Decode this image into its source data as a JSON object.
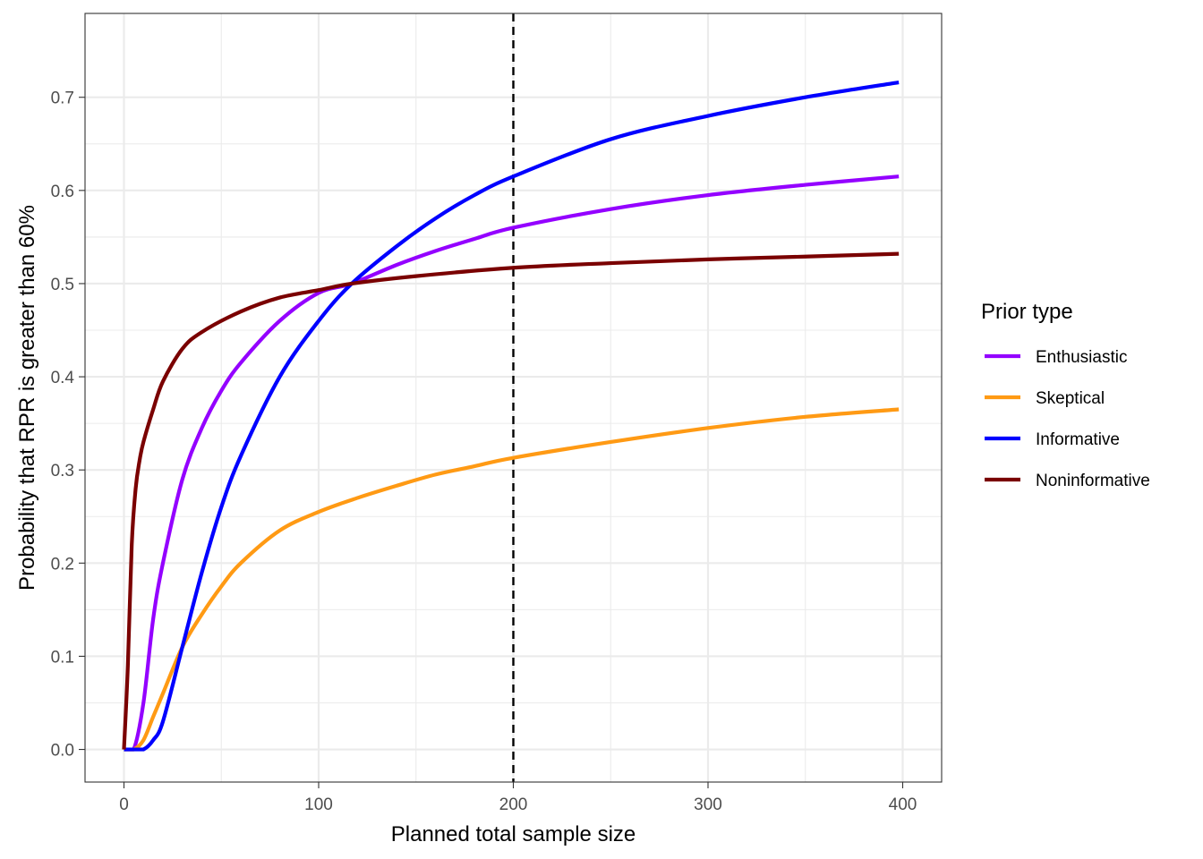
{
  "chart_data": {
    "type": "line",
    "title": "",
    "xlabel": "Planned total sample size",
    "ylabel": "Probability that RPR is greater than 60%",
    "xlim": [
      -20,
      420
    ],
    "ylim": [
      -0.035,
      0.79
    ],
    "xticks": [
      0,
      100,
      200,
      300,
      400
    ],
    "xtick_labels": [
      "0",
      "100",
      "200",
      "300",
      "400"
    ],
    "yticks": [
      0.0,
      0.1,
      0.2,
      0.3,
      0.4,
      0.5,
      0.6,
      0.7
    ],
    "ytick_labels": [
      "0.0",
      "0.1",
      "0.2",
      "0.3",
      "0.4",
      "0.5",
      "0.6",
      "0.7"
    ],
    "grid": true,
    "reference_line": {
      "orientation": "vertical",
      "x": 200,
      "style": "dashed",
      "color": "#000000"
    },
    "legend": {
      "title": "Prior type",
      "position": "right"
    },
    "series": [
      {
        "name": "Enthusiastic",
        "color": "#9400FF",
        "x": [
          0,
          5,
          10,
          15,
          20,
          30,
          40,
          50,
          60,
          80,
          100,
          117,
          140,
          160,
          180,
          200,
          250,
          300,
          350,
          398
        ],
        "y": [
          0.0,
          0.0,
          0.05,
          0.14,
          0.2,
          0.29,
          0.345,
          0.385,
          0.415,
          0.46,
          0.49,
          0.5,
          0.52,
          0.535,
          0.548,
          0.56,
          0.58,
          0.595,
          0.606,
          0.615
        ]
      },
      {
        "name": "Skeptical",
        "color": "#FF9A14",
        "x": [
          0,
          5,
          10,
          15,
          20,
          30,
          40,
          50,
          60,
          80,
          100,
          120,
          140,
          160,
          180,
          200,
          250,
          300,
          350,
          398
        ],
        "y": [
          0.0,
          0.0,
          0.01,
          0.035,
          0.06,
          0.11,
          0.145,
          0.175,
          0.2,
          0.235,
          0.255,
          0.27,
          0.283,
          0.295,
          0.304,
          0.313,
          0.33,
          0.345,
          0.357,
          0.365
        ]
      },
      {
        "name": "Informative",
        "color": "#0000FF",
        "x": [
          0,
          5,
          10,
          15,
          20,
          30,
          40,
          50,
          60,
          80,
          100,
          117,
          140,
          160,
          180,
          200,
          250,
          300,
          350,
          398
        ],
        "y": [
          0.0,
          0.0,
          0.0,
          0.01,
          0.03,
          0.11,
          0.19,
          0.26,
          0.315,
          0.4,
          0.46,
          0.5,
          0.54,
          0.57,
          0.595,
          0.615,
          0.655,
          0.68,
          0.7,
          0.716
        ]
      },
      {
        "name": "Noninformative",
        "color": "#7A0000",
        "x": [
          0,
          2,
          4,
          6,
          8,
          10,
          15,
          20,
          30,
          40,
          60,
          80,
          100,
          117,
          150,
          200,
          250,
          300,
          350,
          398
        ],
        "y": [
          0.0,
          0.09,
          0.22,
          0.28,
          0.31,
          0.33,
          0.365,
          0.395,
          0.43,
          0.448,
          0.47,
          0.485,
          0.493,
          0.5,
          0.508,
          0.517,
          0.522,
          0.526,
          0.529,
          0.532
        ]
      }
    ]
  }
}
